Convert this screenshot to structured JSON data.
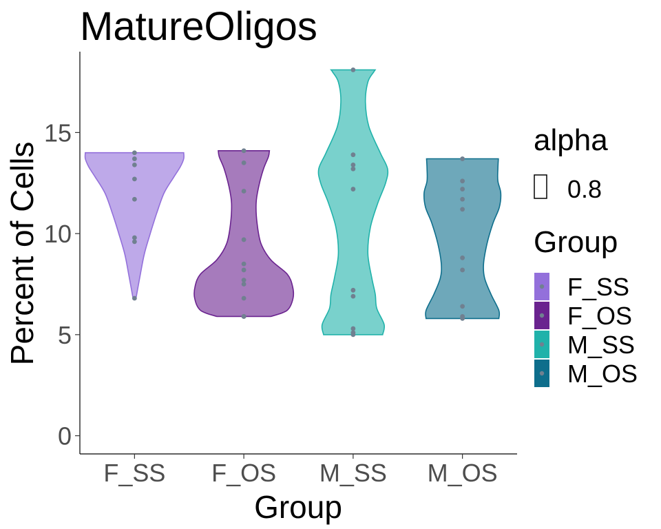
{
  "chart_data": {
    "type": "violin",
    "title": "MatureOligos",
    "xlabel": "Group",
    "ylabel": "Percent of Cells",
    "ylim": [
      -0.9,
      19
    ],
    "yticks": [
      0,
      5,
      10,
      15
    ],
    "grid": false,
    "legend_position": "right",
    "categories": [
      "F_SS",
      "F_OS",
      "M_SS",
      "M_OS"
    ],
    "colors": [
      "#9370DB",
      "#6A238F",
      "#20B2AA",
      "#0E6E8C"
    ],
    "point_color": "#708090",
    "series": [
      {
        "name": "F_SS",
        "values": [
          14.0,
          13.7,
          13.4,
          12.7,
          11.7,
          9.8,
          9.6,
          6.8
        ],
        "profile": [
          [
            6.8,
            0.03
          ],
          [
            8,
            0.12
          ],
          [
            9,
            0.2
          ],
          [
            10,
            0.32
          ],
          [
            11,
            0.45
          ],
          [
            12,
            0.6
          ],
          [
            12.8,
            0.8
          ],
          [
            13.3,
            0.93
          ],
          [
            13.7,
            1.0
          ],
          [
            14.0,
            1.0
          ]
        ]
      },
      {
        "name": "F_OS",
        "values": [
          14.1,
          13.5,
          12.1,
          9.7,
          8.5,
          8.2,
          7.7,
          7.5,
          6.8,
          5.9,
          5.9
        ],
        "profile": [
          [
            5.9,
            0.55
          ],
          [
            6.2,
            0.88
          ],
          [
            6.8,
            1.0
          ],
          [
            7.4,
            0.99
          ],
          [
            8.0,
            0.88
          ],
          [
            8.7,
            0.55
          ],
          [
            9.5,
            0.35
          ],
          [
            10.5,
            0.27
          ],
          [
            11.5,
            0.25
          ],
          [
            12.3,
            0.3
          ],
          [
            13.2,
            0.4
          ],
          [
            13.8,
            0.5
          ],
          [
            14.1,
            0.52
          ]
        ]
      },
      {
        "name": "M_SS",
        "values": [
          18.1,
          13.9,
          13.4,
          13.2,
          12.2,
          7.2,
          6.9,
          5.3,
          5.1,
          5.0
        ],
        "profile": [
          [
            5.0,
            0.6
          ],
          [
            5.5,
            0.63
          ],
          [
            6.3,
            0.48
          ],
          [
            7.0,
            0.45
          ],
          [
            7.8,
            0.38
          ],
          [
            9,
            0.3
          ],
          [
            10.3,
            0.35
          ],
          [
            11.5,
            0.5
          ],
          [
            12.5,
            0.66
          ],
          [
            13.2,
            0.7
          ],
          [
            14.0,
            0.55
          ],
          [
            15.3,
            0.32
          ],
          [
            16.5,
            0.25
          ],
          [
            17.5,
            0.3
          ],
          [
            18.0,
            0.42
          ],
          [
            18.1,
            0.45
          ]
        ]
      },
      {
        "name": "M_OS",
        "values": [
          13.7,
          12.6,
          12.2,
          11.7,
          11.2,
          8.8,
          8.2,
          6.4,
          5.9,
          5.8
        ],
        "profile": [
          [
            5.8,
            0.74
          ],
          [
            6.2,
            0.74
          ],
          [
            7.0,
            0.58
          ],
          [
            7.8,
            0.45
          ],
          [
            8.5,
            0.43
          ],
          [
            9.5,
            0.5
          ],
          [
            10.5,
            0.62
          ],
          [
            11.3,
            0.75
          ],
          [
            12.0,
            0.78
          ],
          [
            12.6,
            0.72
          ],
          [
            13.2,
            0.72
          ],
          [
            13.7,
            0.73
          ]
        ]
      }
    ],
    "legend": {
      "alpha_title": "alpha",
      "alpha_value": "0.8",
      "group_title": "Group",
      "entries": [
        "F_SS",
        "F_OS",
        "M_SS",
        "M_OS"
      ]
    }
  }
}
